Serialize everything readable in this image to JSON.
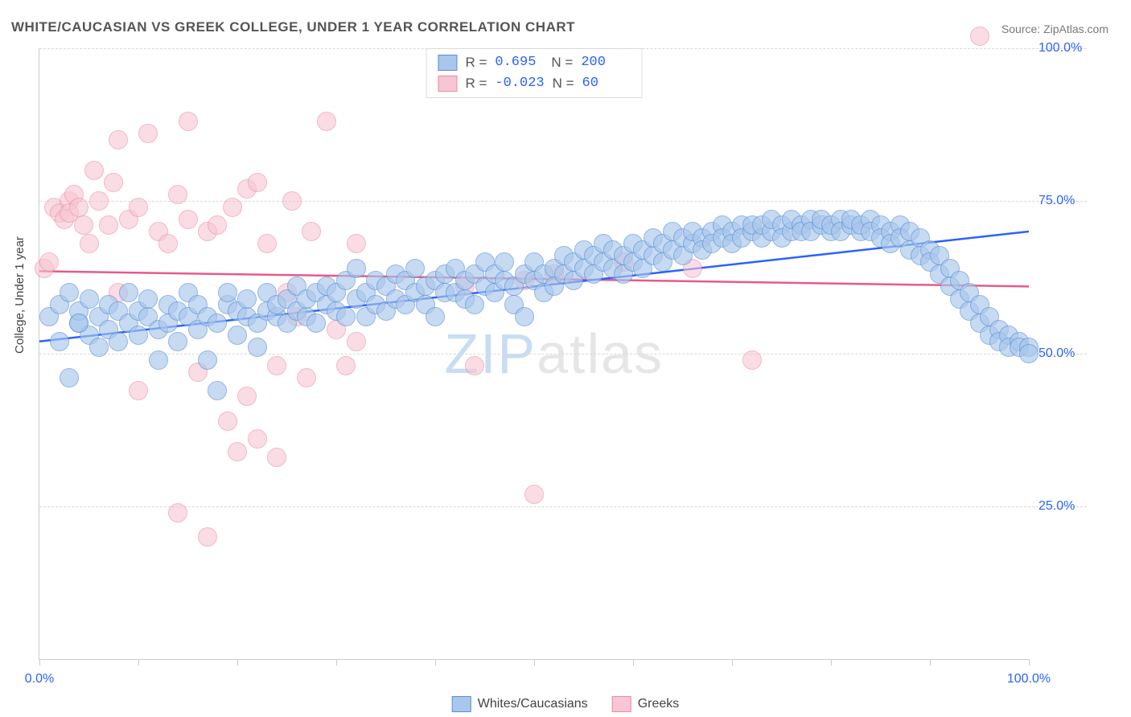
{
  "title": "WHITE/CAUCASIAN VS GREEK COLLEGE, UNDER 1 YEAR CORRELATION CHART",
  "source": "Source: ZipAtlas.com",
  "ylabel": "College, Under 1 year",
  "watermark": {
    "t1": "ZIP",
    "t2": "atlas",
    "c1": "#c8ddf3",
    "c2": "#e6e6e6"
  },
  "chart": {
    "type": "scatter",
    "xlim": [
      0,
      100
    ],
    "ylim": [
      0,
      100
    ],
    "background_color": "#ffffff",
    "grid_color": "#d8d8d8",
    "y_gridlines": [
      25,
      50,
      75,
      100
    ],
    "ytick_labels": {
      "25": "25.0%",
      "50": "50.0%",
      "75": "75.0%",
      "100": "100.0%"
    },
    "ytick_color": "#2962ff",
    "x_minor_ticks": [
      0,
      10,
      20,
      30,
      40,
      50,
      60,
      70,
      80,
      90,
      100
    ],
    "xtick_labels": {
      "0": "0.0%",
      "100": "100.0%"
    },
    "xtick_color": "#2962ff",
    "marker_radius": 11,
    "marker_stroke_width": 1.3,
    "trend_line_width": 2.5
  },
  "series": [
    {
      "name": "Whites/Caucasians",
      "fill": "#a9c7ec",
      "stroke": "#5b8fd6",
      "fill_opacity": 0.65,
      "R": "0.695",
      "N": "200",
      "trend": {
        "x1": 0,
        "y1": 52,
        "x2": 100,
        "y2": 70,
        "color": "#2962ff"
      },
      "points": [
        [
          1,
          56
        ],
        [
          2,
          52
        ],
        [
          2,
          58
        ],
        [
          3,
          60
        ],
        [
          3,
          46
        ],
        [
          4,
          55
        ],
        [
          4,
          57
        ],
        [
          5,
          53
        ],
        [
          5,
          59
        ],
        [
          6,
          51
        ],
        [
          6,
          56
        ],
        [
          7,
          54
        ],
        [
          7,
          58
        ],
        [
          8,
          57
        ],
        [
          8,
          52
        ],
        [
          9,
          55
        ],
        [
          9,
          60
        ],
        [
          10,
          53
        ],
        [
          10,
          57
        ],
        [
          11,
          56
        ],
        [
          11,
          59
        ],
        [
          12,
          49
        ],
        [
          12,
          54
        ],
        [
          13,
          55
        ],
        [
          13,
          58
        ],
        [
          14,
          52
        ],
        [
          14,
          57
        ],
        [
          15,
          56
        ],
        [
          15,
          60
        ],
        [
          16,
          54
        ],
        [
          16,
          58
        ],
        [
          17,
          49
        ],
        [
          17,
          56
        ],
        [
          18,
          44
        ],
        [
          18,
          55
        ],
        [
          19,
          58
        ],
        [
          19,
          60
        ],
        [
          20,
          53
        ],
        [
          20,
          57
        ],
        [
          21,
          56
        ],
        [
          21,
          59
        ],
        [
          22,
          55
        ],
        [
          22,
          51
        ],
        [
          23,
          57
        ],
        [
          23,
          60
        ],
        [
          24,
          56
        ],
        [
          24,
          58
        ],
        [
          25,
          55
        ],
        [
          25,
          59
        ],
        [
          26,
          57
        ],
        [
          26,
          61
        ],
        [
          27,
          56
        ],
        [
          27,
          59
        ],
        [
          28,
          55
        ],
        [
          28,
          60
        ],
        [
          29,
          58
        ],
        [
          29,
          61
        ],
        [
          30,
          57
        ],
        [
          30,
          60
        ],
        [
          31,
          56
        ],
        [
          31,
          62
        ],
        [
          32,
          59
        ],
        [
          32,
          64
        ],
        [
          33,
          56
        ],
        [
          33,
          60
        ],
        [
          34,
          58
        ],
        [
          34,
          62
        ],
        [
          35,
          57
        ],
        [
          35,
          61
        ],
        [
          36,
          59
        ],
        [
          36,
          63
        ],
        [
          37,
          58
        ],
        [
          37,
          62
        ],
        [
          38,
          60
        ],
        [
          38,
          64
        ],
        [
          39,
          61
        ],
        [
          39,
          58
        ],
        [
          40,
          56
        ],
        [
          40,
          62
        ],
        [
          41,
          60
        ],
        [
          41,
          63
        ],
        [
          42,
          60
        ],
        [
          42,
          64
        ],
        [
          43,
          62
        ],
        [
          43,
          59
        ],
        [
          44,
          58
        ],
        [
          44,
          63
        ],
        [
          45,
          61
        ],
        [
          45,
          65
        ],
        [
          46,
          60
        ],
        [
          46,
          63
        ],
        [
          47,
          62
        ],
        [
          47,
          65
        ],
        [
          48,
          61
        ],
        [
          48,
          58
        ],
        [
          49,
          63
        ],
        [
          49,
          56
        ],
        [
          50,
          62
        ],
        [
          50,
          65
        ],
        [
          51,
          63
        ],
        [
          51,
          60
        ],
        [
          52,
          64
        ],
        [
          52,
          61
        ],
        [
          53,
          63
        ],
        [
          53,
          66
        ],
        [
          54,
          62
        ],
        [
          54,
          65
        ],
        [
          55,
          64
        ],
        [
          55,
          67
        ],
        [
          56,
          63
        ],
        [
          56,
          66
        ],
        [
          57,
          65
        ],
        [
          57,
          68
        ],
        [
          58,
          64
        ],
        [
          58,
          67
        ],
        [
          59,
          66
        ],
        [
          59,
          63
        ],
        [
          60,
          65
        ],
        [
          60,
          68
        ],
        [
          61,
          67
        ],
        [
          61,
          64
        ],
        [
          62,
          66
        ],
        [
          62,
          69
        ],
        [
          63,
          68
        ],
        [
          63,
          65
        ],
        [
          64,
          67
        ],
        [
          64,
          70
        ],
        [
          65,
          69
        ],
        [
          65,
          66
        ],
        [
          66,
          68
        ],
        [
          66,
          70
        ],
        [
          67,
          69
        ],
        [
          67,
          67
        ],
        [
          68,
          70
        ],
        [
          68,
          68
        ],
        [
          69,
          71
        ],
        [
          69,
          69
        ],
        [
          70,
          70
        ],
        [
          70,
          68
        ],
        [
          71,
          71
        ],
        [
          71,
          69
        ],
        [
          72,
          70
        ],
        [
          72,
          71
        ],
        [
          73,
          69
        ],
        [
          73,
          71
        ],
        [
          74,
          70
        ],
        [
          74,
          72
        ],
        [
          75,
          71
        ],
        [
          75,
          69
        ],
        [
          76,
          70
        ],
        [
          76,
          72
        ],
        [
          77,
          71
        ],
        [
          77,
          70
        ],
        [
          78,
          72
        ],
        [
          78,
          70
        ],
        [
          79,
          71
        ],
        [
          79,
          72
        ],
        [
          80,
          70
        ],
        [
          80,
          71
        ],
        [
          81,
          72
        ],
        [
          81,
          70
        ],
        [
          82,
          71
        ],
        [
          82,
          72
        ],
        [
          83,
          70
        ],
        [
          83,
          71
        ],
        [
          84,
          72
        ],
        [
          84,
          70
        ],
        [
          85,
          71
        ],
        [
          85,
          69
        ],
        [
          86,
          70
        ],
        [
          86,
          68
        ],
        [
          87,
          71
        ],
        [
          87,
          69
        ],
        [
          88,
          70
        ],
        [
          88,
          67
        ],
        [
          89,
          69
        ],
        [
          89,
          66
        ],
        [
          90,
          67
        ],
        [
          90,
          65
        ],
        [
          91,
          66
        ],
        [
          91,
          63
        ],
        [
          92,
          64
        ],
        [
          92,
          61
        ],
        [
          93,
          62
        ],
        [
          93,
          59
        ],
        [
          94,
          60
        ],
        [
          94,
          57
        ],
        [
          95,
          58
        ],
        [
          95,
          55
        ],
        [
          96,
          56
        ],
        [
          96,
          53
        ],
        [
          97,
          54
        ],
        [
          97,
          52
        ],
        [
          98,
          53
        ],
        [
          98,
          51
        ],
        [
          99,
          52
        ],
        [
          99,
          51
        ],
        [
          100,
          51
        ],
        [
          100,
          50
        ],
        [
          4,
          55
        ]
      ]
    },
    {
      "name": "Greeks",
      "fill": "#f7c5d3",
      "stroke": "#e88ba6",
      "fill_opacity": 0.6,
      "R": "-0.023",
      "N": "60",
      "trend": {
        "x1": 0,
        "y1": 63.5,
        "x2": 100,
        "y2": 61,
        "color": "#e75a8b"
      },
      "points": [
        [
          0.5,
          64
        ],
        [
          1,
          65
        ],
        [
          1.5,
          74
        ],
        [
          2,
          73
        ],
        [
          2.5,
          72
        ],
        [
          3,
          75
        ],
        [
          3,
          73
        ],
        [
          3.5,
          76
        ],
        [
          4,
          74
        ],
        [
          4.5,
          71
        ],
        [
          5,
          68
        ],
        [
          5.5,
          80
        ],
        [
          6,
          75
        ],
        [
          7,
          71
        ],
        [
          7.5,
          78
        ],
        [
          8,
          85
        ],
        [
          8,
          60
        ],
        [
          9,
          72
        ],
        [
          10,
          74
        ],
        [
          10,
          44
        ],
        [
          11,
          86
        ],
        [
          12,
          70
        ],
        [
          13,
          68
        ],
        [
          14,
          76
        ],
        [
          14,
          24
        ],
        [
          15,
          88
        ],
        [
          15,
          72
        ],
        [
          16,
          47
        ],
        [
          17,
          70
        ],
        [
          17,
          20
        ],
        [
          18,
          71
        ],
        [
          19,
          39
        ],
        [
          19.5,
          74
        ],
        [
          20,
          34
        ],
        [
          21,
          77
        ],
        [
          21,
          43
        ],
        [
          22,
          78
        ],
        [
          22,
          36
        ],
        [
          23,
          68
        ],
        [
          24,
          48
        ],
        [
          24,
          33
        ],
        [
          25,
          60
        ],
        [
          25.5,
          75
        ],
        [
          26,
          56
        ],
        [
          27,
          46
        ],
        [
          27.5,
          70
        ],
        [
          29,
          88
        ],
        [
          30,
          54
        ],
        [
          31,
          48
        ],
        [
          32,
          68
        ],
        [
          32,
          52
        ],
        [
          43,
          61
        ],
        [
          44,
          48
        ],
        [
          49,
          62
        ],
        [
          50,
          27
        ],
        [
          52,
          63
        ],
        [
          59,
          65
        ],
        [
          66,
          64
        ],
        [
          72,
          49
        ],
        [
          95,
          102
        ]
      ]
    }
  ],
  "legend_bottom": [
    "Whites/Caucasians",
    "Greeks"
  ]
}
